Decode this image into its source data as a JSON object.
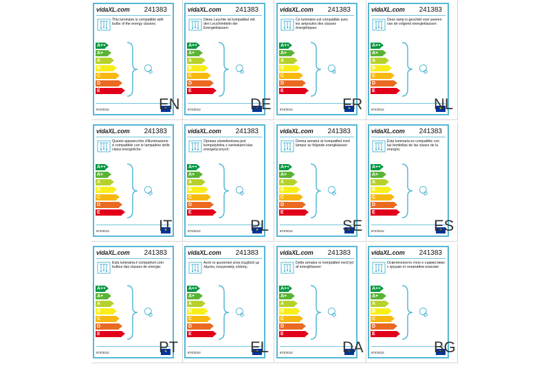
{
  "product_code": "241383",
  "brand": "vidaXL.com",
  "regulation": "874/2012",
  "eu_flag": "EU",
  "energy_classes": [
    "A++",
    "A+",
    "A",
    "B",
    "C",
    "D",
    "E"
  ],
  "energy_colors": [
    "#00963f",
    "#5bb336",
    "#b6d12b",
    "#f8ef1a",
    "#f7b80f",
    "#ea6a22",
    "#e2001a"
  ],
  "labels": [
    {
      "lang": "EN",
      "text": "This luminaire is compatible with bulbs of the energy classes:"
    },
    {
      "lang": "DE",
      "text": "Diese Leuchte ist kompatibel mit den Leuchtmitteln der Energieklassen:"
    },
    {
      "lang": "FR",
      "text": "Ce luminaire est compatible avec les ampoules des classes énergétiques:"
    },
    {
      "lang": "NL",
      "text": "Deze lamp is geschikt voor peeren van de volgend energieklassen:"
    },
    {
      "lang": "IT",
      "text": "Questo apparecchio d'illuminazione è compatibile con le lampadine delle classi energetiche:"
    },
    {
      "lang": "PL",
      "text": "Oprawa oświetleniowa jest kompatybilna z żarówkami klas energetycznych:"
    },
    {
      "lang": "SE",
      "text": "Denna armatur är kompatibel med lampor av följande energiklasser:"
    },
    {
      "lang": "ES",
      "text": "Esta luminaria es compatible con las bombillas de las clases de la energía:"
    },
    {
      "lang": "PT",
      "text": "Esta luminária é compatível com bulbos das classes de energia:"
    },
    {
      "lang": "EL",
      "text": "Αυτό το φωτιστικό είναι συμβατό με λάμπες ενεργειακής κλάσης:"
    },
    {
      "lang": "DA",
      "text": "Dette armatur er kompatibel med lyd af energiklasser:"
    },
    {
      "lang": "BG",
      "text": "Осветителното тяло е съвместимо с крушки от енергийни класове:"
    }
  ]
}
